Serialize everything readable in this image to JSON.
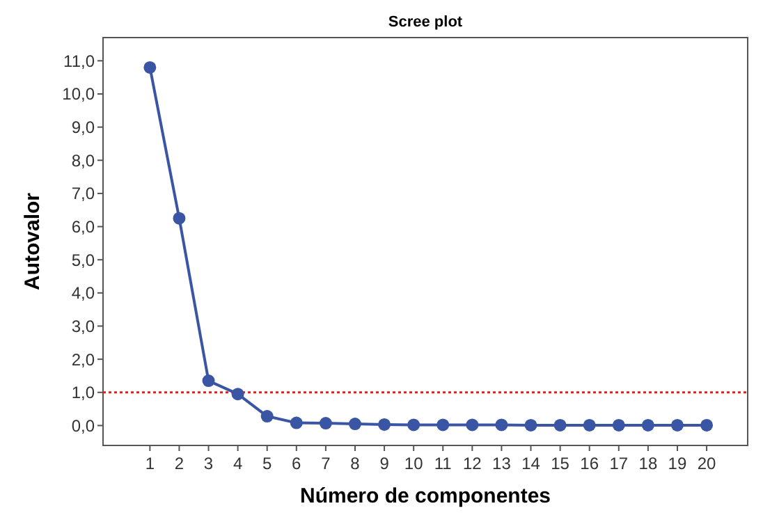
{
  "chart_data": {
    "type": "line",
    "title": "Scree plot",
    "xlabel": "Número de componentes",
    "ylabel": "Autovalor",
    "x": [
      1,
      2,
      3,
      4,
      5,
      6,
      7,
      8,
      9,
      10,
      11,
      12,
      13,
      14,
      15,
      16,
      17,
      18,
      19,
      20
    ],
    "series": [
      {
        "color": "#3a55a4",
        "values": [
          10.8,
          6.25,
          1.35,
          0.95,
          0.28,
          0.08,
          0.07,
          0.05,
          0.03,
          0.02,
          0.02,
          0.02,
          0.02,
          0.01,
          0.01,
          0.01,
          0.01,
          0.01,
          0.01,
          0.01
        ]
      }
    ],
    "xlim": [
      -0.6,
      21.4
    ],
    "xticks": [
      1,
      2,
      3,
      4,
      5,
      6,
      7,
      8,
      9,
      10,
      11,
      12,
      13,
      14,
      15,
      16,
      17,
      18,
      19,
      20
    ],
    "ylim": [
      -0.6,
      11.7
    ],
    "yticks": [
      {
        "value": 0,
        "label": "0,0"
      },
      {
        "value": 1,
        "label": "1,0"
      },
      {
        "value": 2,
        "label": "2,0"
      },
      {
        "value": 3,
        "label": "3,0"
      },
      {
        "value": 4,
        "label": "4,0"
      },
      {
        "value": 5,
        "label": "5,0"
      },
      {
        "value": 6,
        "label": "6,0"
      },
      {
        "value": 7,
        "label": "7,0"
      },
      {
        "value": 8,
        "label": "8,0"
      },
      {
        "value": 9,
        "label": "9,0"
      },
      {
        "value": 10,
        "label": "10,0"
      },
      {
        "value": 11,
        "label": "11,0"
      }
    ],
    "ref_lines": [
      {
        "axis": "y",
        "value": 1,
        "color": "#e02020",
        "line_style": "dotted"
      }
    ],
    "marker": "circle",
    "line_style": "solid"
  }
}
